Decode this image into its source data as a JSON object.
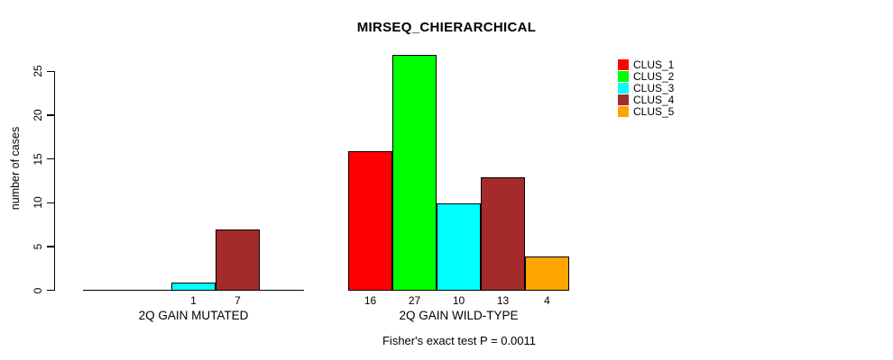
{
  "page": {
    "background": "#FFFFFF",
    "text_color": "#000000"
  },
  "chart_data": {
    "type": "bar",
    "title": "MIRSEQ_CHIERARCHICAL",
    "ylabel": "number of cases",
    "xlabel": "",
    "annotation": "Fisher's exact test P = 0.0011",
    "ylim": [
      0,
      27
    ],
    "yticks": [
      0,
      5,
      10,
      15,
      20,
      25
    ],
    "grid": false,
    "bar_outline_color": "#000000",
    "categories": [
      "2Q GAIN MUTATED",
      "2Q GAIN WILD-TYPE"
    ],
    "series": [
      {
        "name": "CLUS_1",
        "color": "#FF0000",
        "values": [
          0,
          16
        ]
      },
      {
        "name": "CLUS_2",
        "color": "#00FF00",
        "values": [
          0,
          27
        ]
      },
      {
        "name": "CLUS_3",
        "color": "#00FFFF",
        "values": [
          1,
          10
        ]
      },
      {
        "name": "CLUS_4",
        "color": "#A52A2A",
        "values": [
          7,
          13
        ]
      },
      {
        "name": "CLUS_5",
        "color": "#FFA500",
        "values": [
          0,
          4
        ]
      }
    ],
    "bar_value_labels": {
      "show_zero": false,
      "group_1": [
        "1",
        "7"
      ],
      "group_2": [
        "16",
        "27",
        "10",
        "13",
        "4"
      ]
    },
    "legend": {
      "position": "top-right",
      "entries": [
        "CLUS_1",
        "CLUS_2",
        "CLUS_3",
        "CLUS_4",
        "CLUS_5"
      ]
    }
  }
}
